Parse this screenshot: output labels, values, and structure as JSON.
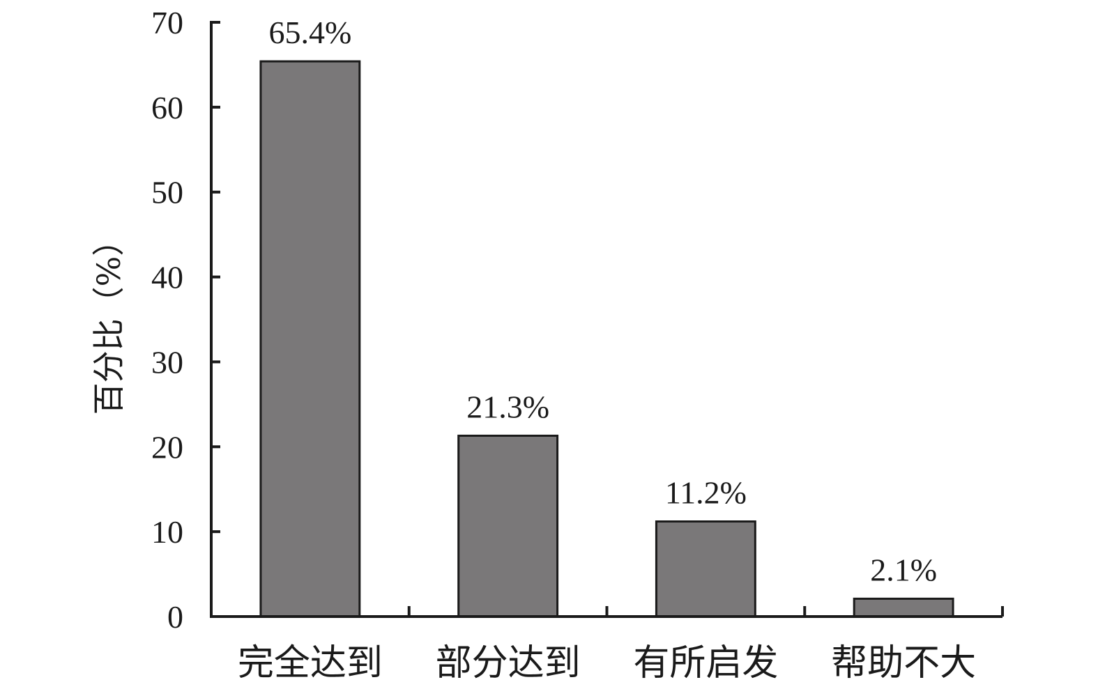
{
  "chart_data": {
    "type": "bar",
    "categories": [
      "完全达到",
      "部分达到",
      "有所启发",
      "帮助不大"
    ],
    "values": [
      65.4,
      21.3,
      11.2,
      2.1
    ],
    "data_labels": [
      "65.4%",
      "21.3%",
      "11.2%",
      "2.1%"
    ],
    "title": "",
    "xlabel": "",
    "ylabel": "百分比（%）",
    "ylim": [
      0,
      70
    ],
    "yticks": [
      0,
      10,
      20,
      30,
      40,
      50,
      60,
      70
    ],
    "grid": false,
    "bar_color": "#7a7879",
    "axis_color": "#1a1a1a"
  }
}
